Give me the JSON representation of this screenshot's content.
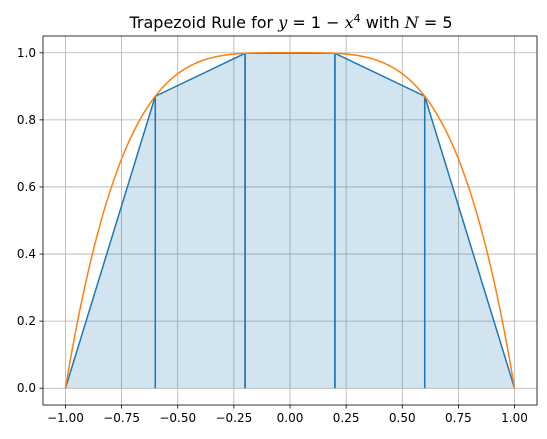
{
  "chart_data": {
    "type": "line",
    "title": {
      "prefix": "Trapezoid Rule for ",
      "y_var": "y",
      "eq": " = 1 − ",
      "x_var": "x",
      "exp": "4",
      "with": " with ",
      "n_var": "N",
      "n_eq": " = 5"
    },
    "xlabel": "",
    "ylabel": "",
    "xlim": [
      -1.1,
      1.1
    ],
    "ylim": [
      -0.05,
      1.05
    ],
    "xticks": [
      -1.0,
      -0.75,
      -0.5,
      -0.25,
      0.0,
      0.25,
      0.5,
      0.75,
      1.0
    ],
    "xtick_labels": [
      "−1.00",
      "−0.75",
      "−0.50",
      "−0.25",
      "0.00",
      "0.25",
      "0.50",
      "0.75",
      "1.00"
    ],
    "yticks": [
      0.0,
      0.2,
      0.4,
      0.6,
      0.8,
      1.0
    ],
    "ytick_labels": [
      "0.0",
      "0.2",
      "0.4",
      "0.6",
      "0.8",
      "1.0"
    ],
    "grid": true,
    "series": [
      {
        "kind": "trapezoids",
        "color": "#1f77b4",
        "fill_color": "#1f77b4",
        "fill_alpha": 0.2,
        "x": [
          -1.0,
          -0.6,
          -0.2,
          0.2,
          0.6,
          1.0
        ],
        "y": [
          0.0,
          0.8704,
          0.9984,
          0.9984,
          0.8704,
          0.0
        ]
      },
      {
        "kind": "curve",
        "function": "1 - x^4",
        "color": "#ff7f0e",
        "x_range": [
          -1.0,
          1.0
        ]
      }
    ]
  }
}
